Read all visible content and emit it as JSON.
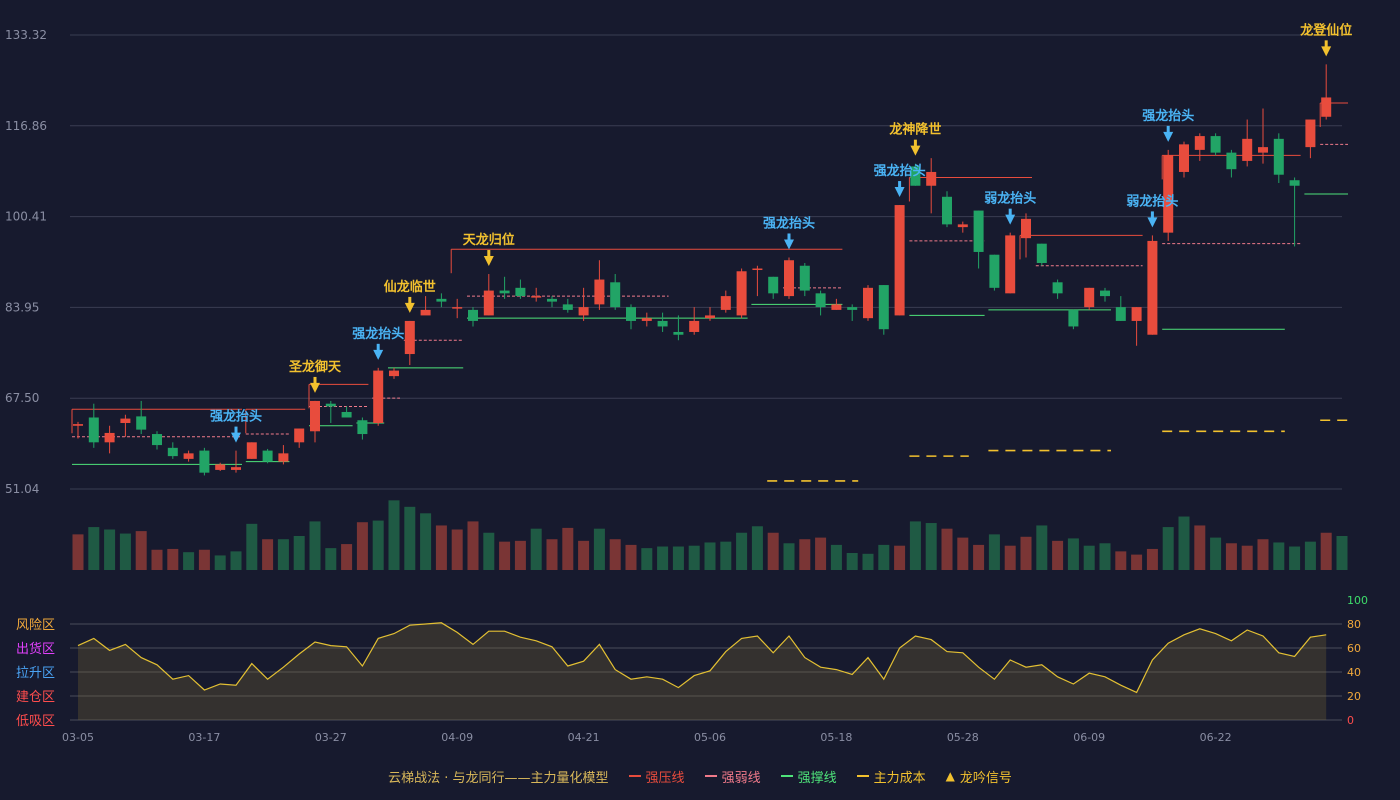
{
  "chart_data": {
    "type": "candlestick",
    "colors": {
      "up": "#e84c3d",
      "down": "#22a466",
      "vol_up": "#7a3535",
      "vol_down": "#1f5a44",
      "signal_gold": "#f2c12e",
      "signal_blue": "#4ab3f4",
      "strong_pressure": "#e84c3d",
      "weak_pressure": "#f07a8a",
      "strong_support": "#4ee37a",
      "main_cost": "#f2c12e",
      "risk_zone": "#f2a93b",
      "sell_zone": "#e040fb",
      "rise_zone": "#4aa3f4",
      "build_zone": "#ff4d4d",
      "absorb_zone": "#ff4d4d"
    },
    "price_axis": {
      "ticks": [
        "133.32",
        "116.86",
        "100.41",
        "83.95",
        "67.50",
        "51.04"
      ],
      "min": 51.04,
      "max": 133.32
    },
    "x_ticks": [
      {
        "i": 0,
        "label": "03-05"
      },
      {
        "i": 8,
        "label": "03-17"
      },
      {
        "i": 16,
        "label": "03-27"
      },
      {
        "i": 24,
        "label": "04-09"
      },
      {
        "i": 32,
        "label": "04-21"
      },
      {
        "i": 40,
        "label": "05-06"
      },
      {
        "i": 48,
        "label": "05-18"
      },
      {
        "i": 56,
        "label": "05-28"
      },
      {
        "i": 64,
        "label": "06-09"
      },
      {
        "i": 72,
        "label": "06-22"
      }
    ],
    "ohlc": [
      [
        62.5,
        62.8,
        60.2,
        63.2
      ],
      [
        64.0,
        59.5,
        58.5,
        66.5
      ],
      [
        59.5,
        61.2,
        57.5,
        62.5
      ],
      [
        63.0,
        63.8,
        60.5,
        64.5
      ],
      [
        64.2,
        61.8,
        61.0,
        67.0
      ],
      [
        61.0,
        59.0,
        58.2,
        61.5
      ],
      [
        58.5,
        57.0,
        56.5,
        59.5
      ],
      [
        56.5,
        57.5,
        56.0,
        58.0
      ],
      [
        58.0,
        54.0,
        53.5,
        58.5
      ],
      [
        54.5,
        55.5,
        54.3,
        55.8
      ],
      [
        54.5,
        55.0,
        54.0,
        58.0
      ],
      [
        56.5,
        59.5,
        56.5,
        59.5
      ],
      [
        58.0,
        56.0,
        55.7,
        58.3
      ],
      [
        56.0,
        57.5,
        55.5,
        59.0
      ],
      [
        59.5,
        62.0,
        58.5,
        62.0
      ],
      [
        61.5,
        67.0,
        59.5,
        67.0
      ],
      [
        66.5,
        66.0,
        63.0,
        67.0
      ],
      [
        65.0,
        64.0,
        64.0,
        66.0
      ],
      [
        63.5,
        61.0,
        60.0,
        64.0
      ],
      [
        63.0,
        72.5,
        62.5,
        73.0
      ],
      [
        71.5,
        72.5,
        71.0,
        73.0
      ],
      [
        75.5,
        81.5,
        73.5,
        81.5
      ],
      [
        82.5,
        83.5,
        83.0,
        86.0
      ],
      [
        85.5,
        85.0,
        84.0,
        86.5
      ],
      [
        84.0,
        84.0,
        82.0,
        85.5
      ],
      [
        83.5,
        81.5,
        80.5,
        84.0
      ],
      [
        82.5,
        87.0,
        82.5,
        90.0
      ],
      [
        87.0,
        86.5,
        85.5,
        89.5
      ],
      [
        87.5,
        86.0,
        85.5,
        89.0
      ],
      [
        86.0,
        86.0,
        85.0,
        87.5
      ],
      [
        85.5,
        85.0,
        84.0,
        86.0
      ],
      [
        84.5,
        83.5,
        83.0,
        85.5
      ],
      [
        82.5,
        84.0,
        81.5,
        87.5
      ],
      [
        84.5,
        89.0,
        83.5,
        92.5
      ],
      [
        88.5,
        84.0,
        83.5,
        90.0
      ],
      [
        84.0,
        81.5,
        80.0,
        84.5
      ],
      [
        81.5,
        82.0,
        80.5,
        83.0
      ],
      [
        81.5,
        80.5,
        79.5,
        83.0
      ],
      [
        79.5,
        79.0,
        78.0,
        82.5
      ],
      [
        79.5,
        81.5,
        79.0,
        84.0
      ],
      [
        82.0,
        82.5,
        81.5,
        84.0
      ],
      [
        83.5,
        86.0,
        83.0,
        87.0
      ],
      [
        82.5,
        90.5,
        82.0,
        91.0
      ],
      [
        91.0,
        91.0,
        86.0,
        91.5
      ],
      [
        89.5,
        86.5,
        85.5,
        89.5
      ],
      [
        86.0,
        92.5,
        85.5,
        93.0
      ],
      [
        91.5,
        87.0,
        86.0,
        92.0
      ],
      [
        86.5,
        84.0,
        82.5,
        87.0
      ],
      [
        83.5,
        84.5,
        83.5,
        85.5
      ],
      [
        84.0,
        83.5,
        81.5,
        84.5
      ],
      [
        82.0,
        87.5,
        81.5,
        88.0
      ],
      [
        88.0,
        80.0,
        79.0,
        88.0
      ],
      [
        82.5,
        102.5,
        82.5,
        102.5
      ],
      [
        109.5,
        106.0,
        106.0,
        110.0
      ],
      [
        106.0,
        108.5,
        101.0,
        111.0
      ],
      [
        104.0,
        99.0,
        98.5,
        105.0
      ],
      [
        98.5,
        99.0,
        97.5,
        99.5
      ],
      [
        101.5,
        94.0,
        91.0,
        101.5
      ],
      [
        93.5,
        87.5,
        87.0,
        93.5
      ],
      [
        86.5,
        97.0,
        86.5,
        97.5
      ],
      [
        96.5,
        100.0,
        93.0,
        101.0
      ],
      [
        95.5,
        92.0,
        91.5,
        95.5
      ],
      [
        88.5,
        86.5,
        85.5,
        89.0
      ],
      [
        83.5,
        80.5,
        80.0,
        83.5
      ],
      [
        84.0,
        87.5,
        83.5,
        87.5
      ],
      [
        87.0,
        86.0,
        85.0,
        87.5
      ],
      [
        84.0,
        81.5,
        81.5,
        86.0
      ],
      [
        81.5,
        84.0,
        77.0,
        84.0
      ],
      [
        79.0,
        96.0,
        79.0,
        97.0
      ],
      [
        97.5,
        111.5,
        96.0,
        112.5
      ],
      [
        108.5,
        113.5,
        107.5,
        114.0
      ],
      [
        112.5,
        115.0,
        110.5,
        115.5
      ],
      [
        115.0,
        112.0,
        111.5,
        115.5
      ],
      [
        112.0,
        109.0,
        107.5,
        112.5
      ],
      [
        110.5,
        114.5,
        109.5,
        118.0
      ],
      [
        112.0,
        113.0,
        110.0,
        120.0
      ],
      [
        114.5,
        108.0,
        106.5,
        115.5
      ],
      [
        107.0,
        106.0,
        95.0,
        107.5
      ],
      [
        113.0,
        118.0,
        111.0,
        118.0
      ],
      [
        118.5,
        122.0,
        118.0,
        128.0
      ]
    ],
    "volume": [
      0.44,
      0.53,
      0.5,
      0.45,
      0.48,
      0.25,
      0.26,
      0.22,
      0.25,
      0.18,
      0.23,
      0.57,
      0.38,
      0.38,
      0.42,
      0.6,
      0.27,
      0.32,
      0.59,
      0.61,
      0.86,
      0.78,
      0.7,
      0.55,
      0.5,
      0.6,
      0.46,
      0.35,
      0.36,
      0.51,
      0.38,
      0.52,
      0.36,
      0.51,
      0.38,
      0.31,
      0.27,
      0.29,
      0.29,
      0.3,
      0.34,
      0.35,
      0.46,
      0.54,
      0.46,
      0.33,
      0.38,
      0.4,
      0.31,
      0.21,
      0.2,
      0.31,
      0.3,
      0.6,
      0.58,
      0.51,
      0.4,
      0.31,
      0.44,
      0.3,
      0.41,
      0.55,
      0.36,
      0.39,
      0.3,
      0.33,
      0.23,
      0.19,
      0.26,
      0.53,
      0.66,
      0.55,
      0.4,
      0.33,
      0.3,
      0.38,
      0.34,
      0.29,
      0.35,
      0.46,
      0.42
    ],
    "volume_colors": [
      "u",
      "d",
      "d",
      "d",
      "u",
      "u",
      "u",
      "d",
      "u",
      "d",
      "d",
      "d",
      "u",
      "d",
      "d",
      "d",
      "d",
      "u",
      "u",
      "d",
      "d",
      "d",
      "d",
      "u",
      "u",
      "u",
      "d",
      "u",
      "u",
      "d",
      "u",
      "u",
      "u",
      "d",
      "u",
      "u",
      "d",
      "d",
      "d",
      "d",
      "d",
      "d",
      "d",
      "d",
      "u",
      "d",
      "u",
      "u",
      "d",
      "d",
      "d",
      "d",
      "u",
      "d",
      "d",
      "u",
      "u",
      "u",
      "d",
      "u",
      "u",
      "d",
      "u",
      "d",
      "d",
      "d",
      "u",
      "u",
      "u",
      "d",
      "d",
      "u",
      "d",
      "u",
      "u",
      "u",
      "d",
      "d",
      "d",
      "u",
      "d"
    ],
    "indicator": {
      "axis_ticks": [
        "100",
        "80",
        "60",
        "40",
        "20",
        "0"
      ],
      "zones": [
        "风险区",
        "出货区",
        "拉升区",
        "建仓区",
        "低吸区"
      ],
      "values": [
        62,
        68,
        58,
        63,
        52,
        46,
        34,
        37,
        25,
        30,
        29,
        47,
        34,
        44,
        55,
        65,
        62,
        61,
        45,
        68,
        72,
        79,
        80,
        81,
        73,
        63,
        74,
        74,
        69,
        66,
        61,
        45,
        49,
        63,
        42,
        34,
        36,
        34,
        27,
        37,
        41,
        57,
        68,
        70,
        56,
        70,
        52,
        44,
        42,
        38,
        52,
        34,
        60,
        70,
        67,
        57,
        56,
        44,
        34,
        50,
        44,
        46,
        36,
        30,
        39,
        36,
        29,
        23,
        50,
        64,
        71,
        76,
        72,
        66,
        75,
        70,
        56,
        53,
        69,
        71
      ]
    },
    "levels": {
      "strong_pressure": [
        [
          0,
          10,
          65.5
        ],
        [
          11,
          14,
          65.5
        ],
        [
          15,
          18,
          70.0
        ],
        [
          24,
          48,
          94.5
        ],
        [
          53,
          60,
          107.5
        ],
        [
          60,
          67,
          97.0
        ],
        [
          69,
          77,
          111.5
        ],
        [
          79,
          80,
          121.0
        ]
      ],
      "weak_pressure": [
        [
          0,
          10,
          60.5
        ],
        [
          11,
          13,
          61.0
        ],
        [
          15,
          18,
          66.0
        ],
        [
          19,
          20,
          67.5
        ],
        [
          21,
          24,
          78.0
        ],
        [
          25,
          37,
          86.0
        ],
        [
          45,
          48,
          87.5
        ],
        [
          53,
          57,
          96.0
        ],
        [
          61,
          67,
          91.5
        ],
        [
          69,
          77,
          95.5
        ],
        [
          79,
          80,
          113.5
        ]
      ],
      "strong_support": [
        [
          0,
          10,
          55.5
        ],
        [
          11,
          13,
          56.0
        ],
        [
          15,
          17,
          62.5
        ],
        [
          18,
          19,
          63.0
        ],
        [
          20,
          24,
          73.0
        ],
        [
          25,
          42,
          82.0
        ],
        [
          43,
          48,
          84.5
        ],
        [
          53,
          57,
          82.5
        ],
        [
          58,
          65,
          83.5
        ],
        [
          69,
          76,
          80.0
        ],
        [
          78,
          80,
          104.5
        ]
      ],
      "main_cost": [
        [
          44,
          49,
          52.5
        ],
        [
          53,
          56,
          57.0
        ],
        [
          58,
          65,
          58.0
        ],
        [
          69,
          76,
          61.5
        ],
        [
          79,
          80,
          63.5
        ]
      ]
    },
    "signals": [
      {
        "i": 10,
        "label": "强龙抬头",
        "type": "blue"
      },
      {
        "i": 15,
        "label": "圣龙御天",
        "type": "gold"
      },
      {
        "i": 19,
        "label": "强龙抬头",
        "type": "blue"
      },
      {
        "i": 21,
        "label": "仙龙临世",
        "type": "gold"
      },
      {
        "i": 26,
        "label": "天龙归位",
        "type": "gold"
      },
      {
        "i": 45,
        "label": "强龙抬头",
        "type": "blue"
      },
      {
        "i": 52,
        "label": "强龙抬头",
        "type": "blue"
      },
      {
        "i": 53,
        "label": "龙神降世",
        "type": "gold"
      },
      {
        "i": 59,
        "label": "弱龙抬头",
        "type": "blue"
      },
      {
        "i": 68,
        "label": "弱龙抬头",
        "type": "blue"
      },
      {
        "i": 69,
        "label": "强龙抬头",
        "type": "blue"
      },
      {
        "i": 79,
        "label": "龙登仙位",
        "type": "gold"
      }
    ],
    "legend": {
      "title": "云梯战法 · 与龙同行——主力量化模型",
      "items": [
        "强压线",
        "强弱线",
        "强撑线",
        "主力成本",
        "龙吟信号"
      ]
    }
  }
}
